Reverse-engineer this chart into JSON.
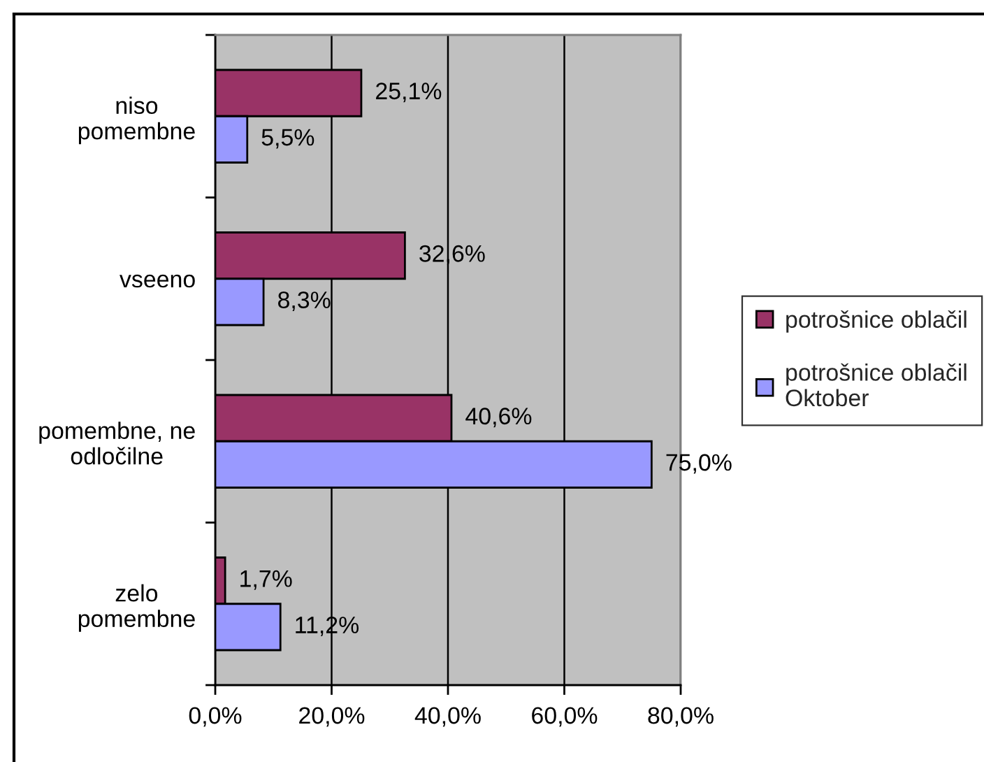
{
  "chart_data": {
    "type": "bar",
    "orientation": "horizontal",
    "categories": [
      "niso pomembne",
      "vseeno",
      "pomembne, ne odločilne",
      "zelo pomembne"
    ],
    "series": [
      {
        "name": "potrošnice oblačil",
        "color": "#993366",
        "values": [
          25.1,
          32.6,
          40.6,
          1.7
        ],
        "value_labels": [
          "25,1%",
          "32,6%",
          "40,6%",
          "1,7%"
        ]
      },
      {
        "name": "potrošnice oblačil Oktober",
        "color": "#9999ff",
        "values": [
          5.5,
          8.3,
          75.0,
          11.2
        ],
        "value_labels": [
          "5,5%",
          "8,3%",
          "75,0%",
          "11,2%"
        ]
      }
    ],
    "xlim": [
      0,
      80
    ],
    "xticks": [
      {
        "value": 0,
        "label": "0,0%"
      },
      {
        "value": 20,
        "label": "20,0%"
      },
      {
        "value": 40,
        "label": "40,0%"
      },
      {
        "value": 60,
        "label": "60,0%"
      },
      {
        "value": 80,
        "label": "80,0%"
      }
    ],
    "grid": "x",
    "legend": "right"
  }
}
